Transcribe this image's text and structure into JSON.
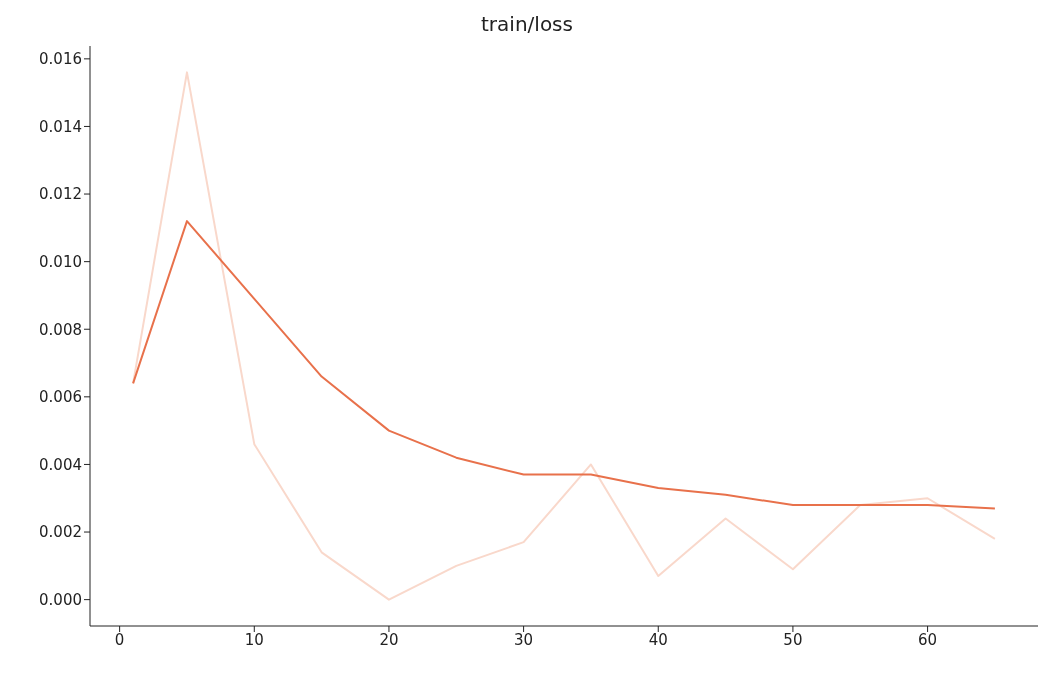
{
  "chart_data": {
    "type": "line",
    "title": "train/loss",
    "x": [
      1,
      5,
      10,
      15,
      20,
      25,
      30,
      35,
      40,
      45,
      50,
      55,
      60,
      65
    ],
    "series": [
      {
        "color": "#f9d8cb",
        "values": [
          0.0064,
          0.0156,
          0.0046,
          0.0014,
          0.0,
          0.001,
          0.0017,
          0.004,
          0.0007,
          0.0024,
          0.0009,
          0.0028,
          0.003,
          0.0018
        ]
      },
      {
        "color": "#e8714b",
        "values": [
          0.0064,
          0.0112,
          0.0089,
          0.0066,
          0.005,
          0.0042,
          0.0037,
          0.0037,
          0.0033,
          0.0031,
          0.0028,
          0.0028,
          0.0028,
          0.0027
        ]
      }
    ],
    "xlim": [
      -2.2,
      68.2
    ],
    "xticks": [
      0,
      10,
      20,
      30,
      40,
      50,
      60
    ],
    "ylim": [
      -0.00078,
      0.01638
    ],
    "yticks": [
      {
        "value": 0,
        "label": "0.000"
      },
      0.002,
      0.004,
      0.006,
      0.008,
      {
        "value": 0.01,
        "label": "0.010"
      },
      0.012,
      0.014,
      0.016
    ],
    "marker": "none",
    "line_style": "solid"
  }
}
